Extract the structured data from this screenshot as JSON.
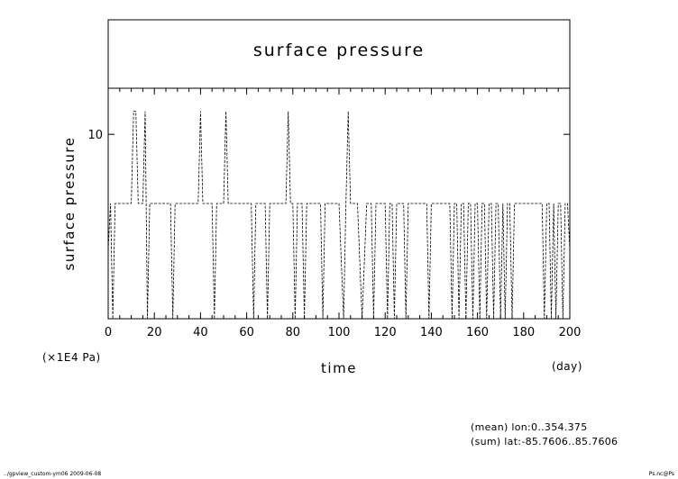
{
  "chart_data": {
    "type": "line",
    "title": "surface pressure",
    "ylabel": "surface pressure",
    "xlabel": "time",
    "y_unit": "(×1E4 Pa)",
    "x_unit": "(day)",
    "xlim": [
      0,
      200
    ],
    "ylim": [
      9.6,
      10.1
    ],
    "x_ticks": [
      0,
      20,
      40,
      60,
      80,
      100,
      120,
      140,
      160,
      180,
      200
    ],
    "y_ticks": [
      10
    ],
    "x_tick_labels": [
      "0",
      "20",
      "40",
      "60",
      "80",
      "100",
      "120",
      "140",
      "160",
      "180",
      "200"
    ],
    "y_tick_labels": [
      "10"
    ],
    "grid": false,
    "line_color": "#000000",
    "series": [
      {
        "x": [
          0,
          1,
          2,
          3,
          5,
          8,
          10,
          11,
          12,
          13,
          15,
          16,
          17,
          18,
          20,
          25,
          27,
          28,
          29,
          30,
          35,
          38,
          39,
          40,
          41,
          42,
          45,
          46,
          47,
          50,
          51,
          52,
          53,
          55,
          60,
          62,
          63,
          64,
          65,
          66,
          68,
          69,
          70,
          71,
          72,
          75,
          77,
          78,
          79,
          80,
          81,
          82,
          84,
          85,
          86,
          87,
          88,
          90,
          92,
          93,
          94,
          95,
          96,
          98,
          100,
          102,
          103,
          104,
          105,
          106,
          108,
          110,
          112,
          113,
          114,
          115,
          116,
          118,
          120,
          121,
          122,
          123,
          124,
          125,
          128,
          129,
          130,
          131,
          132,
          135,
          138,
          139,
          140,
          141,
          142,
          145,
          148,
          149,
          150,
          151,
          152,
          153,
          154,
          155,
          156,
          157,
          158,
          159,
          160,
          161,
          162,
          163,
          164,
          165,
          166,
          167,
          168,
          169,
          170,
          171,
          172,
          173,
          174,
          175,
          176,
          177,
          178,
          180,
          185,
          188,
          189,
          190,
          191,
          192,
          193,
          194,
          195,
          196,
          197,
          198,
          199,
          200
        ],
        "y": [
          9.75,
          9.85,
          9.6,
          9.85,
          9.85,
          9.85,
          9.85,
          10.05,
          10.05,
          9.85,
          9.85,
          10.05,
          9.6,
          9.85,
          9.85,
          9.85,
          9.85,
          9.6,
          9.85,
          9.85,
          9.85,
          9.85,
          9.85,
          10.05,
          9.85,
          9.85,
          9.85,
          9.6,
          9.85,
          9.85,
          10.05,
          9.85,
          9.85,
          9.85,
          9.85,
          9.85,
          9.6,
          9.85,
          9.85,
          9.85,
          9.85,
          9.6,
          9.85,
          9.85,
          9.85,
          9.85,
          9.85,
          10.05,
          9.85,
          9.85,
          9.6,
          9.85,
          9.85,
          9.6,
          9.85,
          9.85,
          9.85,
          9.85,
          9.85,
          9.6,
          9.85,
          9.85,
          9.85,
          9.85,
          9.85,
          9.6,
          9.85,
          10.05,
          9.85,
          9.85,
          9.85,
          9.6,
          9.85,
          9.85,
          9.85,
          9.6,
          9.85,
          9.85,
          9.85,
          9.6,
          9.85,
          9.85,
          9.6,
          9.85,
          9.85,
          9.6,
          9.85,
          9.85,
          9.85,
          9.85,
          9.85,
          9.6,
          9.85,
          9.85,
          9.85,
          9.85,
          9.85,
          9.6,
          9.85,
          9.85,
          9.6,
          9.85,
          9.85,
          9.6,
          9.85,
          9.85,
          9.6,
          9.85,
          9.85,
          9.6,
          9.85,
          9.85,
          9.6,
          9.85,
          9.85,
          9.6,
          9.85,
          9.85,
          9.6,
          9.85,
          9.6,
          9.85,
          9.85,
          9.6,
          9.85,
          9.85,
          9.85,
          9.85,
          9.85,
          9.85,
          9.6,
          9.85,
          9.85,
          9.6,
          9.85,
          9.6,
          9.85,
          9.85,
          9.6,
          9.85,
          9.85,
          9.75
        ]
      }
    ]
  },
  "annotations": {
    "mean_line": "(mean) lon:0..354.375",
    "sum_line": "(sum) lat:-85.7606..85.7606",
    "footer_left": "../gpview_custom-ym06  2009-06-08",
    "footer_right": "Ps.nc@Ps"
  }
}
